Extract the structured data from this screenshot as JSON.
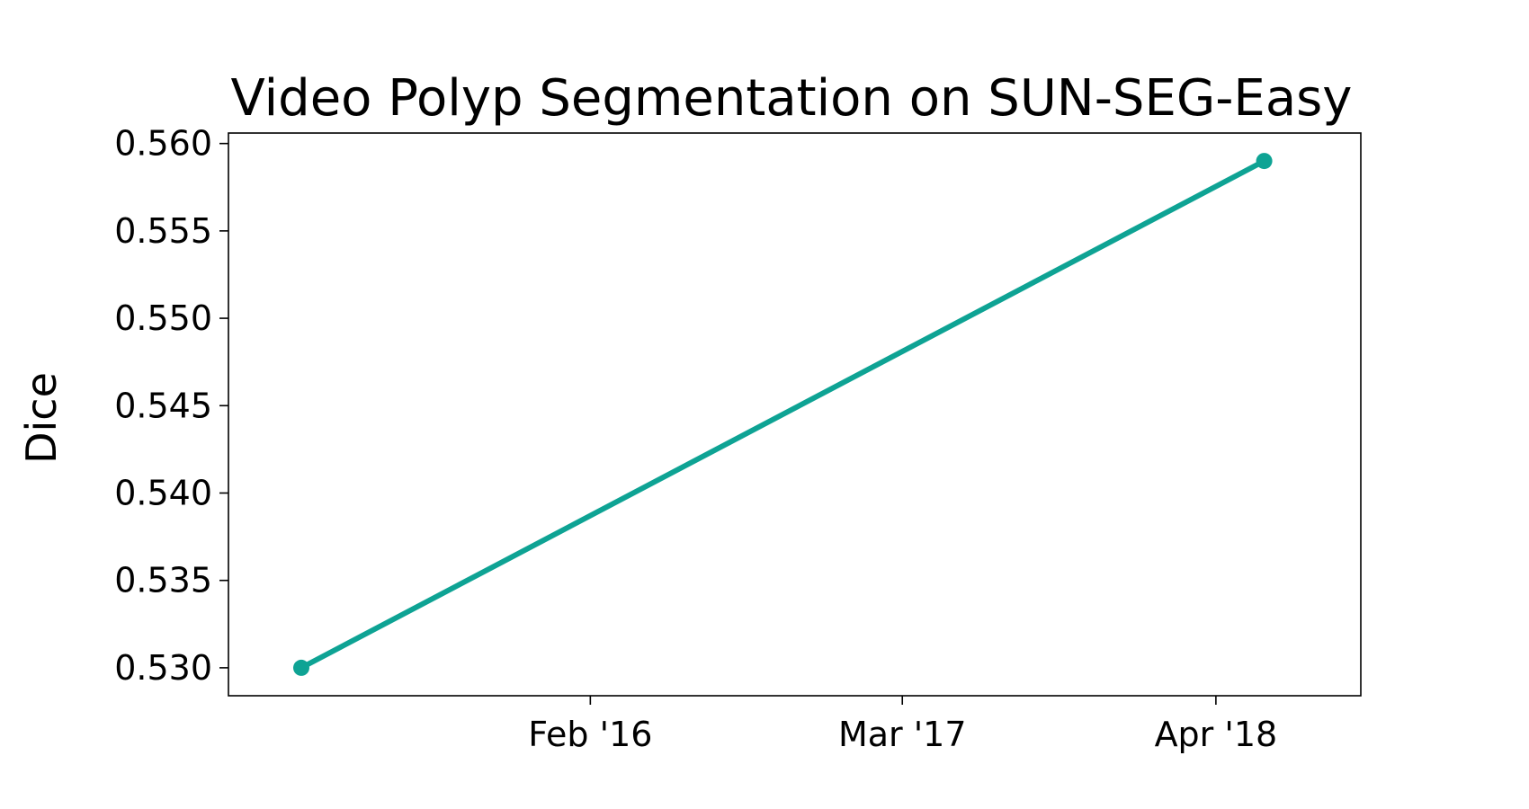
{
  "chart_data": {
    "type": "line",
    "title": "Video Polyp Segmentation on SUN-SEG-Easy",
    "xlabel": "",
    "ylabel": "Dice",
    "x_axis": {
      "type": "date",
      "range": [
        "2014-11-01",
        "2018-10-01"
      ],
      "ticks": [
        {
          "label": "Feb '16",
          "value": "2016-02-01"
        },
        {
          "label": "Mar '17",
          "value": "2017-03-01"
        },
        {
          "label": "Apr '18",
          "value": "2018-04-01"
        }
      ]
    },
    "y_axis": {
      "range": [
        0.5284,
        0.5606
      ],
      "ticks": [
        {
          "label": "0.530",
          "value": 0.53
        },
        {
          "label": "0.535",
          "value": 0.535
        },
        {
          "label": "0.540",
          "value": 0.54
        },
        {
          "label": "0.545",
          "value": 0.545
        },
        {
          "label": "0.550",
          "value": 0.55
        },
        {
          "label": "0.555",
          "value": 0.555
        },
        {
          "label": "0.560",
          "value": 0.56
        }
      ]
    },
    "grid": false,
    "legend": "none",
    "series": [
      {
        "color": "#0ea394",
        "points": [
          {
            "x": "2015-02-01",
            "y": 0.53
          },
          {
            "x": "2018-06-01",
            "y": 0.559
          }
        ]
      }
    ]
  }
}
